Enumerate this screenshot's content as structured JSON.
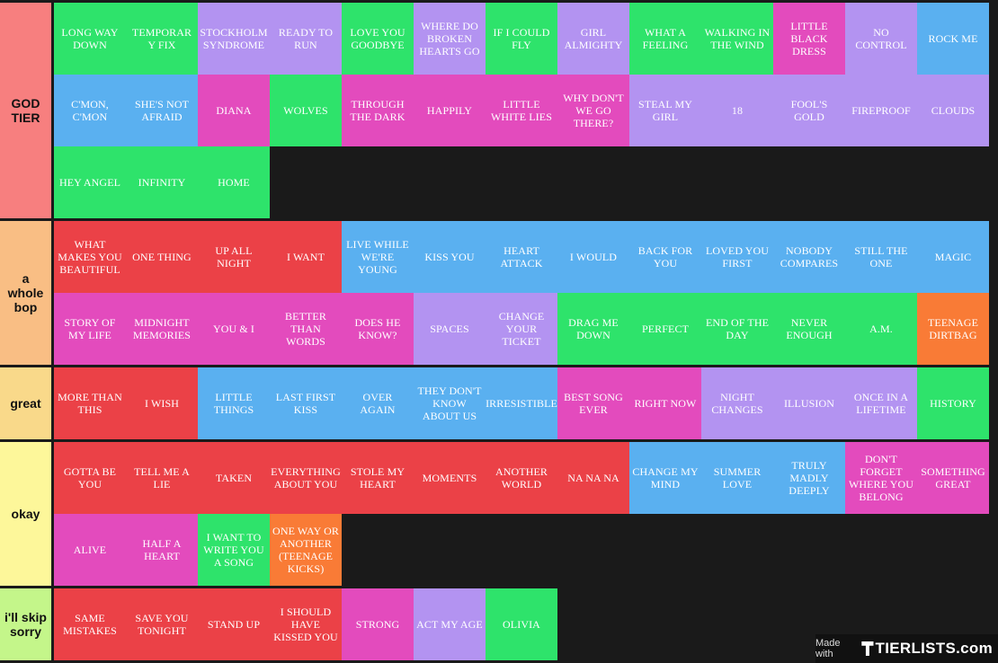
{
  "colors": {
    "green": "#2ee36b",
    "purple": "#b393f1",
    "magenta": "#e34bbd",
    "blue": "#5ab0f0",
    "red": "#eb4147",
    "orange": "#f97b36",
    "background": "#1a1a1a"
  },
  "tiers": [
    {
      "label": "GOD TIER",
      "color": "#f77f7f",
      "items": [
        {
          "text": "LONG WAY DOWN",
          "color": "green"
        },
        {
          "text": "TEMPORARY FIX",
          "color": "green"
        },
        {
          "text": "STOCKHOLM SYNDROME",
          "color": "purple"
        },
        {
          "text": "READY TO RUN",
          "color": "purple"
        },
        {
          "text": "LOVE YOU GOODBYE",
          "color": "green"
        },
        {
          "text": "WHERE DO BROKEN HEARTS GO",
          "color": "purple"
        },
        {
          "text": "IF I COULD FLY",
          "color": "green"
        },
        {
          "text": "GIRL ALMIGHTY",
          "color": "purple"
        },
        {
          "text": "WHAT A FEELING",
          "color": "green"
        },
        {
          "text": "WALKING IN THE WIND",
          "color": "green"
        },
        {
          "text": "LITTLE BLACK DRESS",
          "color": "magenta"
        },
        {
          "text": "NO CONTROL",
          "color": "purple"
        },
        {
          "text": "ROCK ME",
          "color": "blue"
        },
        {
          "text": "C'MON, C'MON",
          "color": "blue"
        },
        {
          "text": "SHE'S NOT AFRAID",
          "color": "blue"
        },
        {
          "text": "DIANA",
          "color": "magenta"
        },
        {
          "text": "WOLVES",
          "color": "green"
        },
        {
          "text": "THROUGH THE DARK",
          "color": "magenta"
        },
        {
          "text": "HAPPILY",
          "color": "magenta"
        },
        {
          "text": "LITTLE WHITE LIES",
          "color": "magenta"
        },
        {
          "text": "WHY DON'T WE GO THERE?",
          "color": "magenta"
        },
        {
          "text": "STEAL MY GIRL",
          "color": "purple"
        },
        {
          "text": "18",
          "color": "purple"
        },
        {
          "text": "FOOL'S GOLD",
          "color": "purple"
        },
        {
          "text": "FIREPROOF",
          "color": "purple"
        },
        {
          "text": "CLOUDS",
          "color": "purple"
        },
        {
          "text": "HEY ANGEL",
          "color": "green"
        },
        {
          "text": "INFINITY",
          "color": "green"
        },
        {
          "text": "HOME",
          "color": "green"
        }
      ]
    },
    {
      "label": "a whole bop",
      "color": "#f9be84",
      "items": [
        {
          "text": "WHAT MAKES YOU BEAUTIFUL",
          "color": "red"
        },
        {
          "text": "ONE THING",
          "color": "red"
        },
        {
          "text": "UP ALL NIGHT",
          "color": "red"
        },
        {
          "text": "I WANT",
          "color": "red"
        },
        {
          "text": "LIVE WHILE WE'RE YOUNG",
          "color": "blue"
        },
        {
          "text": "KISS YOU",
          "color": "blue"
        },
        {
          "text": "HEART ATTACK",
          "color": "blue"
        },
        {
          "text": "I WOULD",
          "color": "blue"
        },
        {
          "text": "BACK FOR YOU",
          "color": "blue"
        },
        {
          "text": "LOVED YOU FIRST",
          "color": "blue"
        },
        {
          "text": "NOBODY COMPARES",
          "color": "blue"
        },
        {
          "text": "STILL THE ONE",
          "color": "blue"
        },
        {
          "text": "MAGIC",
          "color": "blue"
        },
        {
          "text": "STORY OF MY LIFE",
          "color": "magenta"
        },
        {
          "text": "MIDNIGHT MEMORIES",
          "color": "magenta"
        },
        {
          "text": "YOU & I",
          "color": "magenta"
        },
        {
          "text": "BETTER THAN WORDS",
          "color": "magenta"
        },
        {
          "text": "DOES HE KNOW?",
          "color": "magenta"
        },
        {
          "text": "SPACES",
          "color": "purple"
        },
        {
          "text": "CHANGE YOUR TICKET",
          "color": "purple"
        },
        {
          "text": "DRAG ME DOWN",
          "color": "green"
        },
        {
          "text": "PERFECT",
          "color": "green"
        },
        {
          "text": "END OF THE DAY",
          "color": "green"
        },
        {
          "text": "NEVER ENOUGH",
          "color": "green"
        },
        {
          "text": "A.M.",
          "color": "green"
        },
        {
          "text": "TEENAGE DIRTBAG",
          "color": "orange"
        }
      ]
    },
    {
      "label": "great",
      "color": "#f9d98a",
      "items": [
        {
          "text": "MORE THAN THIS",
          "color": "red"
        },
        {
          "text": "I WISH",
          "color": "red"
        },
        {
          "text": "LITTLE THINGS",
          "color": "blue"
        },
        {
          "text": "LAST FIRST KISS",
          "color": "blue"
        },
        {
          "text": "OVER AGAIN",
          "color": "blue"
        },
        {
          "text": "THEY DON'T KNOW ABOUT US",
          "color": "blue"
        },
        {
          "text": "IRRESISTIBLE",
          "color": "blue"
        },
        {
          "text": "BEST SONG EVER",
          "color": "magenta"
        },
        {
          "text": "RIGHT NOW",
          "color": "magenta"
        },
        {
          "text": "NIGHT CHANGES",
          "color": "purple"
        },
        {
          "text": "ILLUSION",
          "color": "purple"
        },
        {
          "text": "ONCE IN A LIFETIME",
          "color": "purple"
        },
        {
          "text": "HISTORY",
          "color": "green"
        }
      ]
    },
    {
      "label": "okay",
      "color": "#fdf79a",
      "items": [
        {
          "text": "GOTTA BE YOU",
          "color": "red"
        },
        {
          "text": "TELL ME A LIE",
          "color": "red"
        },
        {
          "text": "TAKEN",
          "color": "red"
        },
        {
          "text": "EVERYTHING ABOUT YOU",
          "color": "red"
        },
        {
          "text": "STOLE MY HEART",
          "color": "red"
        },
        {
          "text": "MOMENTS",
          "color": "red"
        },
        {
          "text": "ANOTHER WORLD",
          "color": "red"
        },
        {
          "text": "NA NA NA",
          "color": "red"
        },
        {
          "text": "CHANGE MY MIND",
          "color": "blue"
        },
        {
          "text": "SUMMER LOVE",
          "color": "blue"
        },
        {
          "text": "TRULY MADLY DEEPLY",
          "color": "blue"
        },
        {
          "text": "DON'T FORGET WHERE YOU BELONG",
          "color": "magenta"
        },
        {
          "text": "SOMETHING GREAT",
          "color": "magenta"
        },
        {
          "text": "ALIVE",
          "color": "magenta"
        },
        {
          "text": "HALF A HEART",
          "color": "magenta"
        },
        {
          "text": "I WANT TO WRITE YOU A SONG",
          "color": "green"
        },
        {
          "text": "ONE WAY OR ANOTHER (TEENAGE KICKS)",
          "color": "orange"
        }
      ]
    },
    {
      "label": "i'll skip sorry",
      "color": "#c4f68a",
      "items": [
        {
          "text": "SAME MISTAKES",
          "color": "red"
        },
        {
          "text": "SAVE YOU TONIGHT",
          "color": "red"
        },
        {
          "text": "STAND UP",
          "color": "red"
        },
        {
          "text": "I SHOULD HAVE KISSED YOU",
          "color": "red"
        },
        {
          "text": "STRONG",
          "color": "magenta"
        },
        {
          "text": "ACT MY AGE",
          "color": "purple"
        },
        {
          "text": "OLIVIA",
          "color": "green"
        }
      ]
    }
  ],
  "watermark": {
    "made_with": "Made with",
    "brand": "TIERLISTS.com"
  }
}
